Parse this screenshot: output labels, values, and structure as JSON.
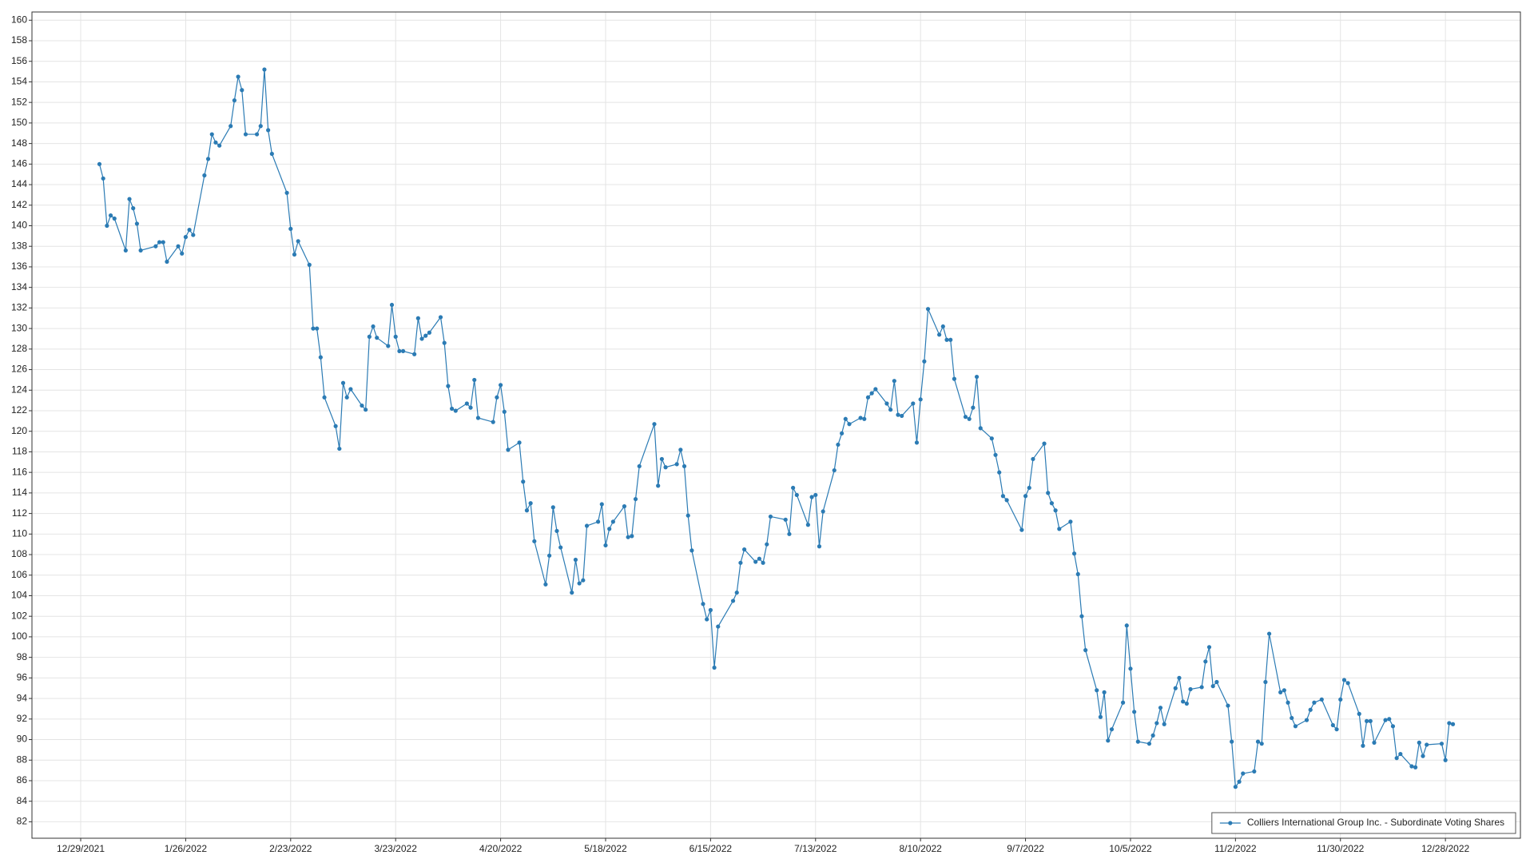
{
  "chart_data": {
    "type": "line",
    "x": [
      "1/3/2022",
      "1/4/2022",
      "1/5/2022",
      "1/6/2022",
      "1/7/2022",
      "1/10/2022",
      "1/11/2022",
      "1/12/2022",
      "1/13/2022",
      "1/14/2022",
      "1/18/2022",
      "1/19/2022",
      "1/20/2022",
      "1/21/2022",
      "1/24/2022",
      "1/25/2022",
      "1/26/2022",
      "1/27/2022",
      "1/28/2022",
      "1/31/2022",
      "2/1/2022",
      "2/2/2022",
      "2/3/2022",
      "2/4/2022",
      "2/7/2022",
      "2/8/2022",
      "2/9/2022",
      "2/10/2022",
      "2/11/2022",
      "2/14/2022",
      "2/15/2022",
      "2/16/2022",
      "2/17/2022",
      "2/18/2022",
      "2/22/2022",
      "2/23/2022",
      "2/24/2022",
      "2/25/2022",
      "2/28/2022",
      "3/1/2022",
      "3/2/2022",
      "3/3/2022",
      "3/4/2022",
      "3/7/2022",
      "3/8/2022",
      "3/9/2022",
      "3/10/2022",
      "3/11/2022",
      "3/14/2022",
      "3/15/2022",
      "3/16/2022",
      "3/17/2022",
      "3/18/2022",
      "3/21/2022",
      "3/22/2022",
      "3/23/2022",
      "3/24/2022",
      "3/25/2022",
      "3/28/2022",
      "3/29/2022",
      "3/30/2022",
      "3/31/2022",
      "4/1/2022",
      "4/4/2022",
      "4/5/2022",
      "4/6/2022",
      "4/7/2022",
      "4/8/2022",
      "4/11/2022",
      "4/12/2022",
      "4/13/2022",
      "4/14/2022",
      "4/18/2022",
      "4/19/2022",
      "4/20/2022",
      "4/21/2022",
      "4/22/2022",
      "4/25/2022",
      "4/26/2022",
      "4/27/2022",
      "4/28/2022",
      "4/29/2022",
      "5/2/2022",
      "5/3/2022",
      "5/4/2022",
      "5/5/2022",
      "5/6/2022",
      "5/9/2022",
      "5/10/2022",
      "5/11/2022",
      "5/12/2022",
      "5/13/2022",
      "5/16/2022",
      "5/17/2022",
      "5/18/2022",
      "5/19/2022",
      "5/20/2022",
      "5/23/2022",
      "5/24/2022",
      "5/25/2022",
      "5/26/2022",
      "5/27/2022",
      "5/31/2022",
      "6/1/2022",
      "6/2/2022",
      "6/3/2022",
      "6/6/2022",
      "6/7/2022",
      "6/8/2022",
      "6/9/2022",
      "6/10/2022",
      "6/13/2022",
      "6/14/2022",
      "6/15/2022",
      "6/16/2022",
      "6/17/2022",
      "6/21/2022",
      "6/22/2022",
      "6/23/2022",
      "6/24/2022",
      "6/27/2022",
      "6/28/2022",
      "6/29/2022",
      "6/30/2022",
      "7/1/2022",
      "7/5/2022",
      "7/6/2022",
      "7/7/2022",
      "7/8/2022",
      "7/11/2022",
      "7/12/2022",
      "7/13/2022",
      "7/14/2022",
      "7/15/2022",
      "7/18/2022",
      "7/19/2022",
      "7/20/2022",
      "7/21/2022",
      "7/22/2022",
      "7/25/2022",
      "7/26/2022",
      "7/27/2022",
      "7/28/2022",
      "7/29/2022",
      "8/1/2022",
      "8/2/2022",
      "8/3/2022",
      "8/4/2022",
      "8/5/2022",
      "8/8/2022",
      "8/9/2022",
      "8/10/2022",
      "8/11/2022",
      "8/12/2022",
      "8/15/2022",
      "8/16/2022",
      "8/17/2022",
      "8/18/2022",
      "8/19/2022",
      "8/22/2022",
      "8/23/2022",
      "8/24/2022",
      "8/25/2022",
      "8/26/2022",
      "8/29/2022",
      "8/30/2022",
      "8/31/2022",
      "9/1/2022",
      "9/2/2022",
      "9/6/2022",
      "9/7/2022",
      "9/8/2022",
      "9/9/2022",
      "9/12/2022",
      "9/13/2022",
      "9/14/2022",
      "9/15/2022",
      "9/16/2022",
      "9/19/2022",
      "9/20/2022",
      "9/21/2022",
      "9/22/2022",
      "9/23/2022",
      "9/26/2022",
      "9/27/2022",
      "9/28/2022",
      "9/29/2022",
      "9/30/2022",
      "10/3/2022",
      "10/4/2022",
      "10/5/2022",
      "10/6/2022",
      "10/7/2022",
      "10/10/2022",
      "10/11/2022",
      "10/12/2022",
      "10/13/2022",
      "10/14/2022",
      "10/17/2022",
      "10/18/2022",
      "10/19/2022",
      "10/20/2022",
      "10/21/2022",
      "10/24/2022",
      "10/25/2022",
      "10/26/2022",
      "10/27/2022",
      "10/28/2022",
      "10/31/2022",
      "11/1/2022",
      "11/2/2022",
      "11/3/2022",
      "11/4/2022",
      "11/7/2022",
      "11/8/2022",
      "11/9/2022",
      "11/10/2022",
      "11/11/2022",
      "11/14/2022",
      "11/15/2022",
      "11/16/2022",
      "11/17/2022",
      "11/18/2022",
      "11/21/2022",
      "11/22/2022",
      "11/23/2022",
      "11/25/2022",
      "11/28/2022",
      "11/29/2022",
      "11/30/2022",
      "12/1/2022",
      "12/2/2022",
      "12/5/2022",
      "12/6/2022",
      "12/7/2022",
      "12/8/2022",
      "12/9/2022",
      "12/12/2022",
      "12/13/2022",
      "12/14/2022",
      "12/15/2022",
      "12/16/2022",
      "12/19/2022",
      "12/20/2022",
      "12/21/2022",
      "12/22/2022",
      "12/23/2022",
      "12/27/2022",
      "12/28/2022",
      "12/29/2022",
      "12/30/2022"
    ],
    "series": [
      {
        "name": "Colliers International Group Inc.  - Subordinate Voting Shares",
        "color": "#2b7bb4",
        "values": [
          146,
          144.6,
          140,
          141,
          140.7,
          137.6,
          142.6,
          141.7,
          140.2,
          137.6,
          138,
          138.4,
          138.4,
          136.5,
          138,
          137.3,
          138.9,
          139.6,
          139.1,
          144.9,
          146.5,
          148.9,
          148.1,
          147.8,
          149.7,
          152.2,
          154.5,
          153.2,
          148.9,
          148.9,
          149.7,
          155.2,
          149.3,
          147,
          143.2,
          139.7,
          137.2,
          138.5,
          136.2,
          130,
          130,
          127.2,
          123.3,
          120.5,
          118.3,
          124.7,
          123.3,
          124.1,
          122.5,
          122.1,
          129.2,
          130.2,
          129.1,
          128.3,
          132.3,
          129.2,
          127.8,
          127.8,
          127.5,
          131,
          129,
          129.3,
          129.6,
          131.1,
          128.6,
          124.4,
          122.2,
          122,
          122.7,
          122.3,
          125,
          121.3,
          120.9,
          123.3,
          124.5,
          121.9,
          118.2,
          118.9,
          115.1,
          112.3,
          113,
          109.3,
          105.1,
          107.9,
          112.6,
          110.3,
          108.7,
          104.3,
          107.5,
          105.2,
          105.5,
          110.8,
          111.2,
          112.9,
          108.9,
          110.5,
          111.2,
          112.7,
          109.7,
          109.8,
          113.4,
          116.6,
          120.7,
          114.7,
          117.3,
          116.5,
          116.8,
          118.2,
          116.6,
          111.8,
          108.4,
          103.2,
          101.7,
          102.6,
          97,
          101,
          103.5,
          104.3,
          107.2,
          108.5,
          107.3,
          107.6,
          107.2,
          109,
          111.7,
          111.4,
          110,
          114.5,
          113.8,
          110.9,
          113.6,
          113.8,
          108.8,
          112.2,
          116.2,
          118.7,
          119.8,
          121.2,
          120.7,
          121.3,
          121.2,
          123.3,
          123.7,
          124.1,
          122.7,
          122.1,
          124.9,
          121.6,
          121.5,
          122.7,
          118.9,
          123.1,
          126.8,
          131.9,
          129.4,
          130.2,
          128.9,
          128.9,
          125.1,
          121.4,
          121.2,
          122.3,
          125.3,
          120.3,
          119.3,
          117.7,
          116,
          113.7,
          113.3,
          110.4,
          113.7,
          114.5,
          117.3,
          118.8,
          114,
          113,
          112.3,
          110.5,
          111.2,
          108.1,
          106.1,
          102,
          98.7,
          94.8,
          92.2,
          94.6,
          89.9,
          91,
          93.6,
          101.1,
          96.9,
          92.7,
          89.8,
          89.6,
          90.4,
          91.6,
          93.1,
          91.5,
          95,
          96,
          93.7,
          93.5,
          94.9,
          95.1,
          97.6,
          99,
          95.2,
          95.6,
          93.3,
          89.8,
          85.4,
          85.9,
          86.7,
          86.9,
          89.8,
          89.6,
          95.6,
          100.3,
          94.6,
          94.8,
          93.6,
          92.1,
          91.3,
          91.9,
          92.9,
          93.6,
          93.9,
          91.4,
          91,
          93.9,
          95.8,
          95.5,
          92.5,
          89.4,
          91.8,
          91.8,
          89.7,
          91.9,
          92,
          91.3,
          88.2,
          88.6,
          87.4,
          87.3,
          89.7,
          88.4,
          89.5,
          89.6,
          88,
          91.6,
          91.5
        ]
      }
    ],
    "xlim": [
      "12/16/2021",
      "1/17/2023"
    ],
    "xticks": [
      "12/29/2021",
      "1/26/2022",
      "2/23/2022",
      "3/23/2022",
      "4/20/2022",
      "5/18/2022",
      "6/15/2022",
      "7/13/2022",
      "8/10/2022",
      "9/7/2022",
      "10/5/2022",
      "11/2/2022",
      "11/30/2022",
      "12/28/2022"
    ],
    "ylim": [
      80.4,
      160.8
    ],
    "yticks": [
      82,
      84,
      86,
      88,
      90,
      92,
      94,
      96,
      98,
      100,
      102,
      104,
      106,
      108,
      110,
      112,
      114,
      116,
      118,
      120,
      122,
      124,
      126,
      128,
      130,
      132,
      134,
      136,
      138,
      140,
      142,
      144,
      146,
      148,
      150,
      152,
      154,
      156,
      158,
      160
    ],
    "grid": true,
    "legend": "lower right"
  }
}
